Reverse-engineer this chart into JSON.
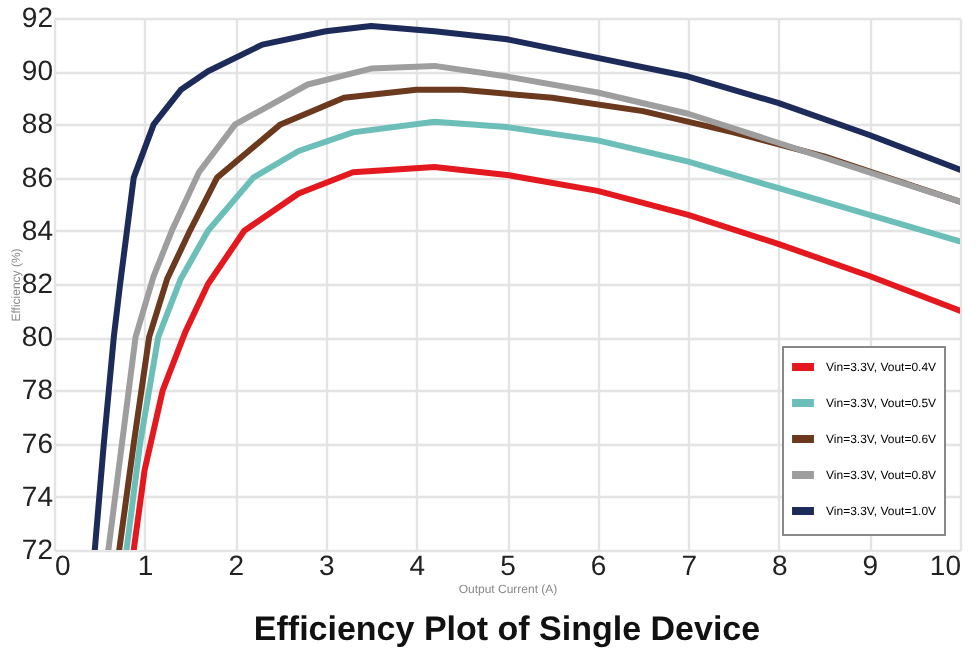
{
  "chart_data": {
    "type": "line",
    "title": "Efficiency Plot of Single Device",
    "xlabel": "Output Current (A)",
    "ylabel": "Efficiency (%)",
    "xlim": [
      0,
      10
    ],
    "xticks": [
      0,
      1,
      2,
      3,
      4,
      5,
      6,
      7,
      8,
      9,
      10
    ],
    "ylim": [
      72,
      92
    ],
    "yticks": [
      72,
      74,
      76,
      78,
      80,
      82,
      84,
      86,
      88,
      90,
      92
    ],
    "grid": true,
    "legend": "bottom right",
    "marker": "none",
    "line_style": "solid",
    "series": [
      {
        "name": "Vin=3.3V, Vout=0.4V",
        "color": "#e3191f",
        "x": [
          0.88,
          1.0,
          1.2,
          1.45,
          1.7,
          2.1,
          2.7,
          3.3,
          4.2,
          5,
          6,
          7,
          8,
          9,
          10
        ],
        "values": [
          72,
          75,
          78,
          80.2,
          82,
          84,
          85.4,
          86.2,
          86.4,
          86.1,
          85.5,
          84.6,
          83.5,
          82.3,
          81
        ]
      },
      {
        "name": "Vin=3.3V, Vout=0.5V",
        "color": "#6bbfb8",
        "x": [
          0.8,
          0.95,
          1.15,
          1.4,
          1.7,
          2.2,
          2.7,
          3.3,
          4.2,
          5,
          6,
          7,
          8,
          9,
          10
        ],
        "values": [
          72,
          76,
          80,
          82.2,
          84,
          86,
          87,
          87.7,
          88.1,
          87.9,
          87.4,
          86.6,
          85.6,
          84.6,
          83.6
        ]
      },
      {
        "name": "Vin=3.3V, Vout=0.6V",
        "color": "#6b3a1e",
        "x": [
          0.72,
          0.88,
          1.05,
          1.25,
          1.5,
          1.8,
          2.5,
          3.2,
          4,
          4.5,
          5.5,
          6.5,
          7.5,
          8.5,
          10
        ],
        "values": [
          72,
          76,
          80,
          82.2,
          84,
          86,
          88,
          89,
          89.3,
          89.3,
          89,
          88.5,
          87.7,
          86.8,
          85.1
        ]
      },
      {
        "name": "Vin=3.3V, Vout=0.8V",
        "color": "#9e9e9e",
        "x": [
          0.6,
          0.75,
          0.9,
          1.1,
          1.3,
          1.6,
          2,
          2.8,
          3.5,
          4.2,
          5,
          6,
          7,
          8,
          9,
          10
        ],
        "values": [
          72,
          76,
          80,
          82.3,
          84,
          86.2,
          88,
          89.5,
          90.1,
          90.2,
          89.8,
          89.2,
          88.4,
          87.3,
          86.2,
          85.1
        ]
      },
      {
        "name": "Vin=3.3V, Vout=1.0V",
        "color": "#1c2b5a",
        "x": [
          0.45,
          0.55,
          0.66,
          0.73,
          0.88,
          1.1,
          1.4,
          1.7,
          2.3,
          3,
          3.5,
          4.2,
          5,
          6,
          7,
          8,
          9,
          10
        ],
        "values": [
          72,
          76,
          80,
          82,
          86,
          88,
          89.3,
          90,
          91,
          91.5,
          91.7,
          91.5,
          91.2,
          90.5,
          89.8,
          88.8,
          87.6,
          86.3
        ]
      }
    ]
  }
}
